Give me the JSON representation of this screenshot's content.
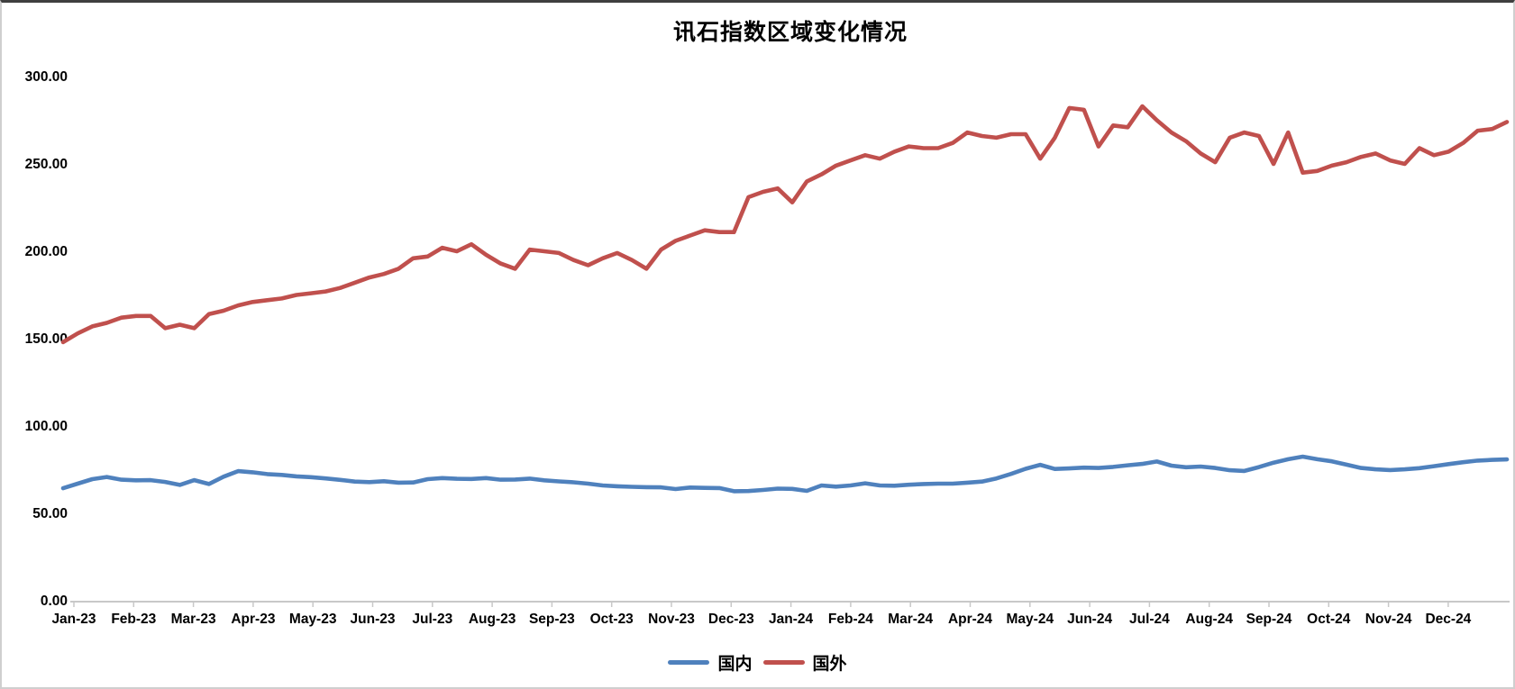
{
  "title": "讯石指数区域变化情况",
  "style": {
    "background": "#ffffff",
    "axis_color": "#c8c8c8",
    "text_color": "#000000",
    "domestic_color": "#4F81BD",
    "foreign_color": "#C0504D"
  },
  "legend": {
    "items": [
      {
        "label": "国内",
        "color": "#4F81BD"
      },
      {
        "label": "国外",
        "color": "#C0504D"
      }
    ]
  },
  "chart_data": {
    "type": "line",
    "title": "讯石指数区域变化情况",
    "xlabel": "",
    "ylabel": "",
    "grid": false,
    "legend_position": "bottom",
    "y_axis": {
      "min": 0,
      "max": 300,
      "step": 50,
      "tick_labels": [
        "0.00",
        "50.00",
        "100.00",
        "150.00",
        "200.00",
        "250.00",
        "300.00"
      ]
    },
    "categories": [
      "Jan-23",
      "Feb-23",
      "Mar-23",
      "Apr-23",
      "May-23",
      "Jun-23",
      "Jul-23",
      "Aug-23",
      "Sep-23",
      "Oct-23",
      "Nov-23",
      "Dec-23",
      "Jan-24",
      "Feb-24",
      "Mar-24",
      "Apr-24",
      "May-24",
      "Jun-24",
      "Jul-24",
      "Aug-24",
      "Sep-24",
      "Oct-24",
      "Nov-24",
      "Dec-24"
    ],
    "series": [
      {
        "name": "国内",
        "color": "#4F81BD",
        "values": [
          64.4,
          67,
          69.6,
          70.8,
          69.3,
          68.9,
          69,
          68,
          66.3,
          69,
          66.8,
          71,
          74.2,
          73.5,
          72.5,
          72,
          71.2,
          70.7,
          70,
          69.2,
          68.2,
          67.9,
          68.4,
          67.6,
          67.7,
          69.6,
          70.2,
          69.8,
          69.7,
          70.2,
          69.3,
          69.4,
          69.9,
          68.9,
          68.3,
          67.8,
          67,
          66,
          65.5,
          65.2,
          65,
          64.9,
          63.9,
          64.8,
          64.6,
          64.5,
          62.7,
          62.8,
          63.4,
          64.2,
          64,
          62.9,
          66,
          65.3,
          66,
          67.2,
          66,
          65.8,
          66.4,
          66.8,
          67,
          67,
          67.6,
          68.2,
          70,
          72.6,
          75.5,
          77.8,
          75.4,
          75.7,
          76.2,
          76,
          76.6,
          77.5,
          78.3,
          79.7,
          77.3,
          76.4,
          76.8,
          76,
          74.7,
          74.3,
          76.5,
          79,
          81,
          82.5,
          81,
          79.8,
          77.9,
          76,
          75.2,
          74.8,
          75.2,
          75.9,
          77,
          78.2,
          79.3,
          80.2,
          80.6,
          80.9
        ]
      },
      {
        "name": "国外",
        "color": "#C0504D",
        "values": [
          148,
          153,
          157,
          159,
          162,
          163,
          163,
          156,
          158,
          156,
          164,
          166,
          169,
          171,
          172,
          173,
          175,
          176,
          177,
          179,
          182,
          185,
          187,
          190,
          196,
          197,
          202,
          200,
          204,
          198,
          193,
          190,
          201,
          200,
          199,
          195,
          192,
          196,
          199,
          195,
          190,
          201,
          206,
          209,
          212,
          211,
          211,
          231,
          234,
          236,
          228,
          240,
          244,
          249,
          252,
          255,
          253,
          257,
          260,
          259,
          259,
          262,
          268,
          266,
          265,
          267,
          267,
          253,
          265,
          282,
          281,
          260,
          272,
          271,
          283,
          275,
          268,
          263,
          256,
          251,
          265,
          268,
          266,
          250,
          268,
          245,
          246,
          249,
          251,
          254,
          256,
          252,
          250,
          259,
          255,
          257,
          262,
          269,
          270,
          274
        ]
      }
    ]
  }
}
